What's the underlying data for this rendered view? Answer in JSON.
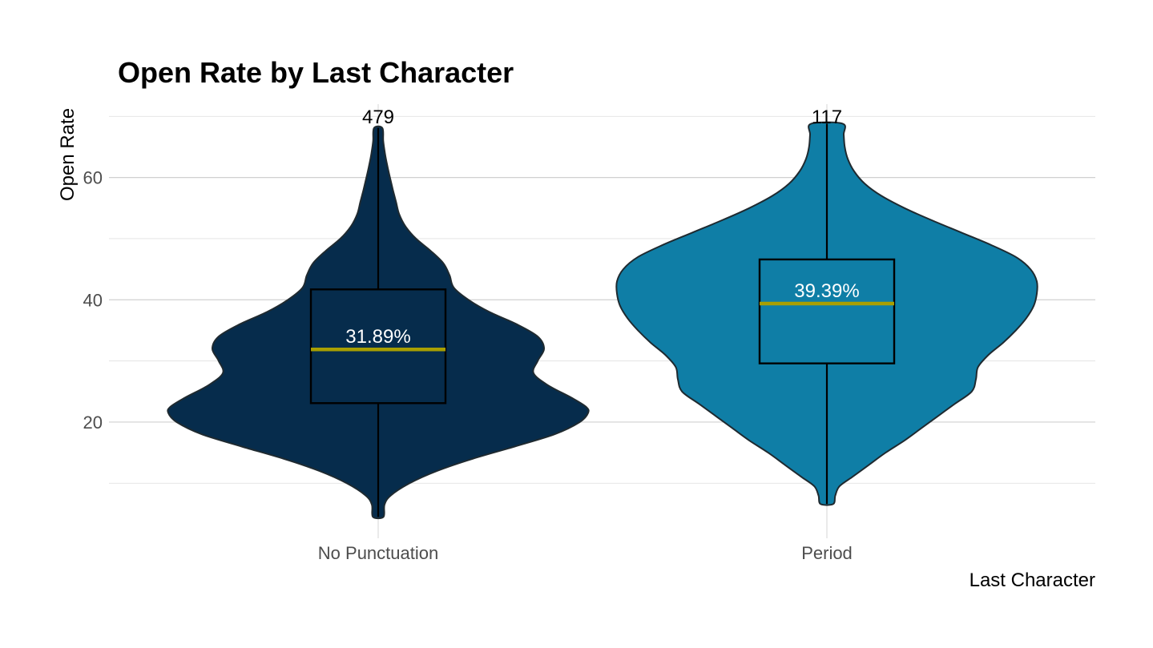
{
  "chart_data": {
    "type": "violin",
    "title": "Open Rate by Last Character",
    "xlabel": "Last Character",
    "ylabel": "Open Rate",
    "ylim": [
      1,
      72
    ],
    "yticks": [
      20,
      40,
      60
    ],
    "grid": true,
    "legend": "none",
    "median_color": "#a89f00",
    "categories": [
      {
        "name": "No Punctuation",
        "count": "479",
        "median_label": "31.89%",
        "median": 31.89,
        "q1": 23.1,
        "q3": 41.7,
        "min": 4.5,
        "max": 68.1,
        "color": "#062c4c",
        "density_profile": [
          [
            4.5,
            0.025
          ],
          [
            6.5,
            0.03
          ],
          [
            8,
            0.06
          ],
          [
            10,
            0.15
          ],
          [
            12,
            0.28
          ],
          [
            14,
            0.45
          ],
          [
            16,
            0.65
          ],
          [
            18,
            0.84
          ],
          [
            20,
            0.96
          ],
          [
            21.5,
            1.0
          ],
          [
            22.5,
            0.99
          ],
          [
            24,
            0.92
          ],
          [
            26,
            0.81
          ],
          [
            28,
            0.74
          ],
          [
            30,
            0.76
          ],
          [
            32,
            0.79
          ],
          [
            34,
            0.76
          ],
          [
            36,
            0.66
          ],
          [
            38,
            0.53
          ],
          [
            40,
            0.43
          ],
          [
            42,
            0.36
          ],
          [
            44,
            0.34
          ],
          [
            46,
            0.31
          ],
          [
            48,
            0.25
          ],
          [
            50,
            0.18
          ],
          [
            52,
            0.13
          ],
          [
            54,
            0.1
          ],
          [
            56,
            0.085
          ],
          [
            58,
            0.07
          ],
          [
            60,
            0.056
          ],
          [
            62,
            0.043
          ],
          [
            64,
            0.032
          ],
          [
            66,
            0.024
          ],
          [
            68.1,
            0.02
          ]
        ]
      },
      {
        "name": "Period",
        "count": "117",
        "median_label": "39.39%",
        "median": 39.39,
        "q1": 29.6,
        "q3": 46.6,
        "min": 6.6,
        "max": 68.8,
        "color": "#0f7ea6",
        "density_profile": [
          [
            6.6,
            0.03
          ],
          [
            8,
            0.04
          ],
          [
            9.5,
            0.06
          ],
          [
            11,
            0.12
          ],
          [
            13,
            0.2
          ],
          [
            15,
            0.28
          ],
          [
            17,
            0.37
          ],
          [
            19,
            0.45
          ],
          [
            21,
            0.53
          ],
          [
            23,
            0.61
          ],
          [
            25,
            0.69
          ],
          [
            27,
            0.71
          ],
          [
            29,
            0.72
          ],
          [
            31,
            0.77
          ],
          [
            33,
            0.84
          ],
          [
            35,
            0.9
          ],
          [
            37,
            0.95
          ],
          [
            39,
            0.985
          ],
          [
            41,
            1.0
          ],
          [
            43,
            1.0
          ],
          [
            45,
            0.97
          ],
          [
            47,
            0.9
          ],
          [
            49,
            0.78
          ],
          [
            51,
            0.64
          ],
          [
            53,
            0.5
          ],
          [
            55,
            0.37
          ],
          [
            57,
            0.26
          ],
          [
            59,
            0.18
          ],
          [
            61,
            0.13
          ],
          [
            63,
            0.1
          ],
          [
            65,
            0.085
          ],
          [
            67,
            0.08
          ],
          [
            68.8,
            0.075
          ]
        ]
      }
    ]
  }
}
